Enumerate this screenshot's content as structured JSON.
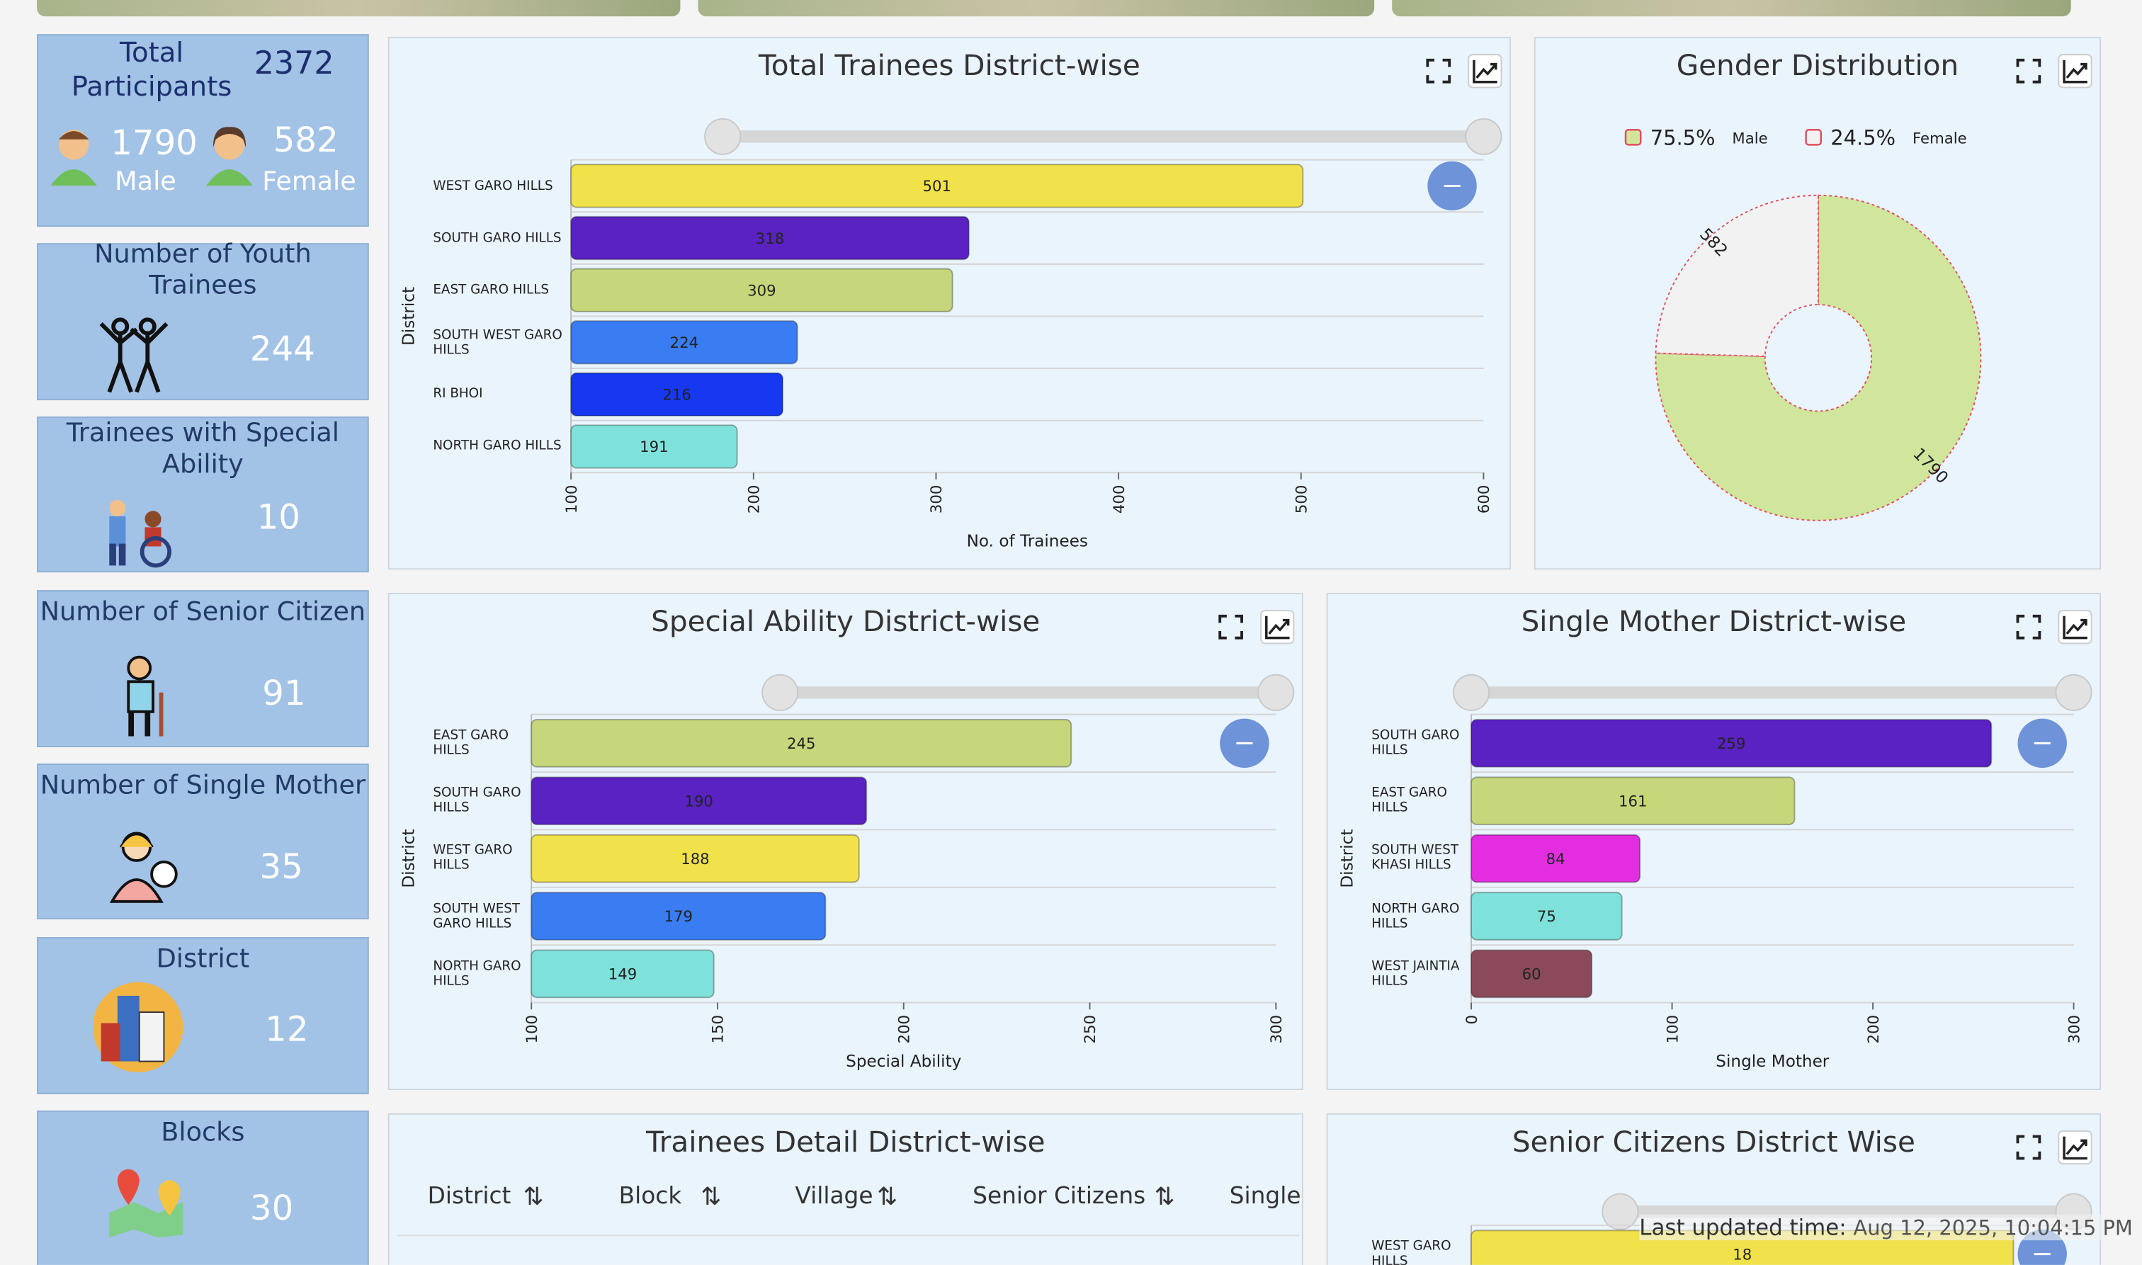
{
  "cards": [
    {
      "title": "Total Participants",
      "value": 2372,
      "male": 1790,
      "male_label": "Male",
      "female": 582,
      "female_label": "Female"
    },
    {
      "title": "Number of Youth Trainees",
      "value": 244
    },
    {
      "title": "Trainees with Special Ability",
      "value": 10
    },
    {
      "title": "Number of Senior Citizen",
      "value": 91
    },
    {
      "title": "Number of Single Mother",
      "value": 35
    },
    {
      "title": "District",
      "value": 12
    },
    {
      "title": "Blocks",
      "value": 30
    }
  ],
  "chart_data": [
    {
      "type": "bar",
      "orientation": "horizontal",
      "title": "Total Trainees District-wise",
      "x_label": "No. of Trainees",
      "y_label": "District",
      "categories": [
        "WEST GARO HILLS",
        "SOUTH GARO HILLS",
        "EAST GARO HILLS",
        "SOUTH WEST GARO HILLS",
        "RI BHOI",
        "NORTH GARO HILLS"
      ],
      "values": [
        501,
        318,
        309,
        224,
        216,
        191
      ],
      "colors": [
        "#f1e14a",
        "#5a22c2",
        "#c6d67a",
        "#3a7cf2",
        "#1538f0",
        "#7fe2da"
      ],
      "xlim": [
        100,
        600
      ],
      "xticks": [
        100,
        200,
        300,
        400,
        500,
        600
      ]
    },
    {
      "type": "pie",
      "title": "Gender Distribution",
      "categories": [
        "Male",
        "Female"
      ],
      "values": [
        1790,
        582
      ],
      "legend_labels": [
        "75.5%",
        "24.5%"
      ],
      "colors": [
        "#cfe69c",
        "#f2f2f2"
      ]
    },
    {
      "type": "bar",
      "orientation": "horizontal",
      "title": "Special Ability District-wise",
      "x_label": "Special Ability",
      "y_label": "District",
      "categories": [
        "EAST GARO HILLS",
        "SOUTH GARO HILLS",
        "WEST GARO HILLS",
        "SOUTH WEST GARO HILLS",
        "NORTH GARO HILLS"
      ],
      "values": [
        245,
        190,
        188,
        179,
        149
      ],
      "colors": [
        "#c6d67a",
        "#5a22c2",
        "#f1e14a",
        "#3a7cf2",
        "#7fe2da"
      ],
      "xlim": [
        100,
        300
      ],
      "xticks": [
        100,
        150,
        200,
        250,
        300
      ]
    },
    {
      "type": "bar",
      "orientation": "horizontal",
      "title": "Single Mother District-wise",
      "x_label": "Single Mother",
      "y_label": "District",
      "categories": [
        "SOUTH GARO HILLS",
        "EAST GARO HILLS",
        "SOUTH WEST KHASI HILLS",
        "NORTH GARO HILLS",
        "WEST JAINTIA HILLS"
      ],
      "values": [
        259,
        161,
        84,
        75,
        60
      ],
      "colors": [
        "#5a22c2",
        "#c6d67a",
        "#e22ee0",
        "#7fe2da",
        "#8b4a5a"
      ],
      "xlim": [
        0,
        300
      ],
      "xticks": [
        0,
        100,
        200,
        300
      ]
    },
    {
      "type": "bar",
      "orientation": "horizontal",
      "title": "Senior Citizens District Wise",
      "categories": [
        "WEST GARO HILLS"
      ],
      "values": [
        18
      ],
      "colors": [
        "#f1e14a"
      ],
      "xlim": [
        0,
        20
      ]
    }
  ],
  "table": {
    "title": "Trainees Detail District-wise",
    "headers": [
      "District",
      "Block",
      "Village",
      "Senior Citizens",
      "Single"
    ]
  },
  "footer": {
    "label": "Last updated time:",
    "value": "Aug 12, 2025, 10:04:15 PM"
  }
}
